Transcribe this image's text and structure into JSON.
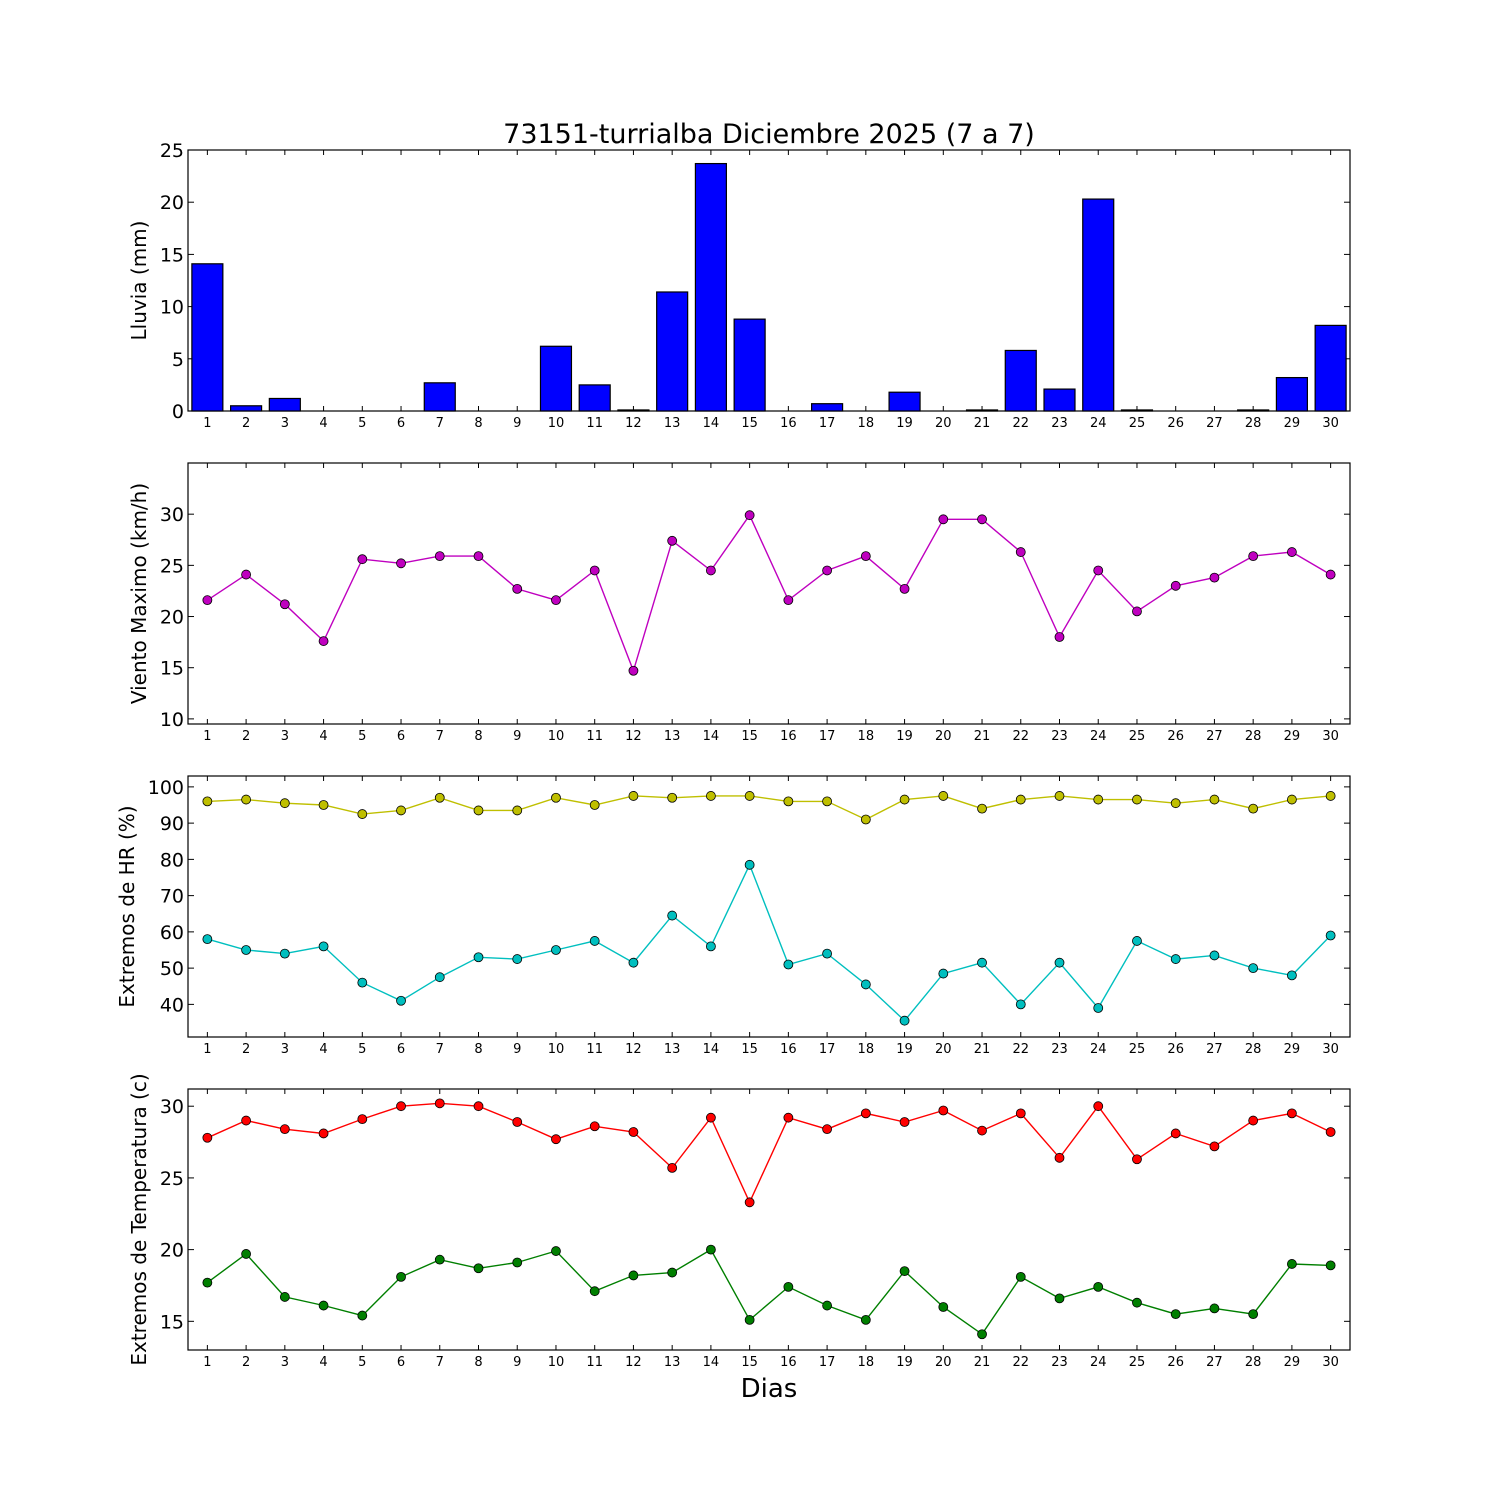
{
  "title": "73151-turrialba Diciembre 2025  (7 a 7)",
  "xlabel": "Dias",
  "chart_data": [
    {
      "type": "bar",
      "ylabel": "Lluvia (mm)",
      "categories": [
        "1",
        "2",
        "3",
        "4",
        "5",
        "6",
        "7",
        "8",
        "9",
        "10",
        "11",
        "12",
        "13",
        "14",
        "15",
        "16",
        "17",
        "18",
        "19",
        "20",
        "21",
        "22",
        "23",
        "24",
        "25",
        "26",
        "27",
        "28",
        "29",
        "30"
      ],
      "values": [
        14.1,
        0.5,
        1.2,
        0,
        0,
        0,
        2.7,
        0,
        0,
        6.2,
        2.5,
        0.1,
        11.4,
        23.7,
        8.8,
        0,
        0.7,
        0,
        1.8,
        0,
        0.1,
        5.8,
        2.1,
        20.3,
        0.1,
        0,
        0,
        0.1,
        3.2,
        8.2
      ],
      "ylim": [
        0,
        25
      ],
      "yticks": [
        0,
        5,
        10,
        15,
        20,
        25
      ],
      "color": "#0000ff"
    },
    {
      "type": "line",
      "ylabel": "Viento Maximo (km/h)",
      "categories": [
        "1",
        "2",
        "3",
        "4",
        "5",
        "6",
        "7",
        "8",
        "9",
        "10",
        "11",
        "12",
        "13",
        "14",
        "15",
        "16",
        "17",
        "18",
        "19",
        "20",
        "21",
        "22",
        "23",
        "24",
        "25",
        "26",
        "27",
        "28",
        "29",
        "30"
      ],
      "series": [
        {
          "color": "#bf00bf",
          "values": [
            21.6,
            24.1,
            21.2,
            17.6,
            25.6,
            25.2,
            25.9,
            25.9,
            22.7,
            21.6,
            24.5,
            14.7,
            27.4,
            24.5,
            29.9,
            21.6,
            24.5,
            25.9,
            22.7,
            29.5,
            29.5,
            26.3,
            18.0,
            24.5,
            20.5,
            23.0,
            23.8,
            25.9,
            26.3,
            24.1
          ]
        }
      ],
      "ylim": [
        9.5,
        35
      ],
      "yticks": [
        10,
        15,
        20,
        25,
        30
      ]
    },
    {
      "type": "line",
      "ylabel": "Extremos de HR (%)",
      "categories": [
        "1",
        "2",
        "3",
        "4",
        "5",
        "6",
        "7",
        "8",
        "9",
        "10",
        "11",
        "12",
        "13",
        "14",
        "15",
        "16",
        "17",
        "18",
        "19",
        "20",
        "21",
        "22",
        "23",
        "24",
        "25",
        "26",
        "27",
        "28",
        "29",
        "30"
      ],
      "series": [
        {
          "color": "#bfbf00",
          "values": [
            96,
            96.5,
            95.5,
            95,
            92.5,
            93.5,
            97,
            93.5,
            93.5,
            97,
            95,
            97.5,
            97,
            97.5,
            97.5,
            96,
            96,
            91,
            96.5,
            97.5,
            94,
            96.5,
            97.5,
            96.5,
            96.5,
            95.5,
            96.5,
            94,
            96.5,
            97.5
          ]
        },
        {
          "color": "#00bfbf",
          "values": [
            58,
            55,
            54,
            56,
            46,
            41,
            47.5,
            53,
            52.5,
            55,
            57.5,
            51.5,
            64.5,
            56,
            78.5,
            51,
            54,
            45.5,
            35.5,
            48.5,
            51.5,
            40,
            51.5,
            39,
            57.5,
            52.5,
            53.5,
            50,
            48,
            59
          ]
        }
      ],
      "ylim": [
        31,
        103
      ],
      "yticks": [
        40,
        50,
        60,
        70,
        80,
        90,
        100
      ]
    },
    {
      "type": "line",
      "ylabel": "Extremos de Temperatura (c)",
      "categories": [
        "1",
        "2",
        "3",
        "4",
        "5",
        "6",
        "7",
        "8",
        "9",
        "10",
        "11",
        "12",
        "13",
        "14",
        "15",
        "16",
        "17",
        "18",
        "19",
        "20",
        "21",
        "22",
        "23",
        "24",
        "25",
        "26",
        "27",
        "28",
        "29",
        "30"
      ],
      "series": [
        {
          "color": "#ff0000",
          "values": [
            27.8,
            29.0,
            28.4,
            28.1,
            29.1,
            30.0,
            30.2,
            30.0,
            28.9,
            27.7,
            28.6,
            28.2,
            25.7,
            29.2,
            23.3,
            29.2,
            28.4,
            29.5,
            28.9,
            29.7,
            28.3,
            29.5,
            26.4,
            30.0,
            26.3,
            28.1,
            27.2,
            29.0,
            29.5,
            28.2
          ]
        },
        {
          "color": "#007f00",
          "values": [
            17.7,
            19.7,
            16.7,
            16.1,
            15.4,
            18.1,
            19.3,
            18.7,
            19.1,
            19.9,
            17.1,
            18.2,
            18.4,
            20.0,
            15.1,
            17.4,
            16.1,
            15.1,
            18.5,
            16.0,
            14.1,
            18.1,
            16.6,
            17.4,
            16.3,
            15.5,
            15.9,
            15.5,
            19.0,
            18.9
          ]
        }
      ],
      "ylim": [
        13,
        31.2
      ],
      "yticks": [
        15,
        20,
        25,
        30
      ]
    }
  ]
}
